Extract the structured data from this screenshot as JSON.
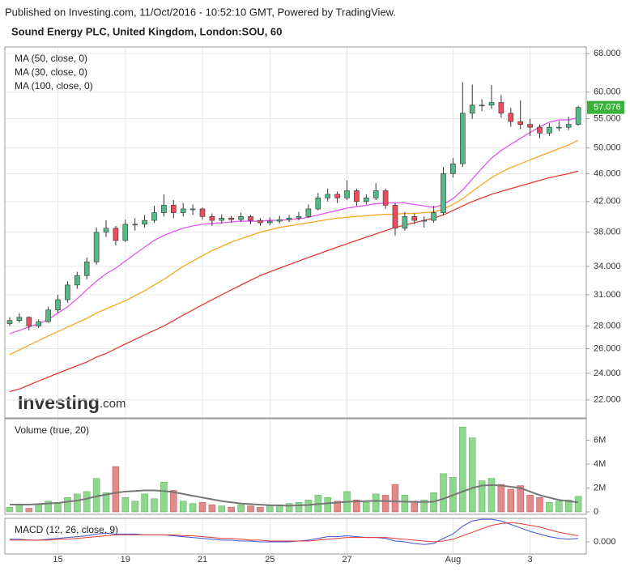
{
  "header": {
    "published": "Published on Investing.com, 11/Oct/2016 - 10:52:10 GMT, Powered by TradingView.",
    "symbol": "Sound Energy PLC, United Kingdom, London:SOU, 60"
  },
  "watermark": {
    "brand": "Investing",
    "suffix": ".com"
  },
  "chart_data": [
    {
      "type": "candlestick",
      "log": true,
      "grid": true,
      "up_color": "#53b987",
      "down_color": "#eb4d5c",
      "categories": [
        null,
        null,
        null,
        null,
        null,
        "15",
        null,
        null,
        null,
        null,
        null,
        null,
        "19",
        null,
        null,
        null,
        null,
        null,
        null,
        null,
        "21",
        null,
        null,
        null,
        null,
        null,
        null,
        "25",
        null,
        null,
        null,
        null,
        null,
        null,
        null,
        "27",
        null,
        null,
        null,
        null,
        null,
        null,
        null,
        null,
        null,
        null,
        "Aug",
        null,
        null,
        null,
        null,
        null,
        null,
        null,
        "3",
        null,
        null,
        null,
        null,
        null
      ],
      "open": [
        28.2,
        28.5,
        28.8,
        28.0,
        28.4,
        29.5,
        30.5,
        32.0,
        33.0,
        34.5,
        38.0,
        38.5,
        37.0,
        39.0,
        39.0,
        39.5,
        40.5,
        41.5,
        40.5,
        41.0,
        41.0,
        40.0,
        39.5,
        39.8,
        39.6,
        40.0,
        39.5,
        39.2,
        39.4,
        39.6,
        39.8,
        40.0,
        41.0,
        42.5,
        43.0,
        42.5,
        43.5,
        42.0,
        42.5,
        43.5,
        41.5,
        38.5,
        40.0,
        39.5,
        39.5,
        40.5,
        46.0,
        47.5,
        56.0,
        57.5,
        57.5,
        58.0,
        56.0,
        54.5,
        54.0,
        53.5,
        52.5,
        53.5,
        53.5,
        54.0
      ],
      "high": [
        28.8,
        29.2,
        28.9,
        28.6,
        29.8,
        31.0,
        32.4,
        33.4,
        35.0,
        38.6,
        39.5,
        38.8,
        39.6,
        39.8,
        40.2,
        41.4,
        43.0,
        42.2,
        41.8,
        41.6,
        41.2,
        40.4,
        40.3,
        40.1,
        40.5,
        40.2,
        39.8,
        39.9,
        40.1,
        40.2,
        40.6,
        41.6,
        43.2,
        43.8,
        43.4,
        45.0,
        43.8,
        43.0,
        44.6,
        43.8,
        41.8,
        40.6,
        40.4,
        40.0,
        41.4,
        47.0,
        48.4,
        62.0,
        61.5,
        58.6,
        61.4,
        59.4,
        57.0,
        58.4,
        55.0,
        54.0,
        54.2,
        54.6,
        55.4,
        57.4
      ],
      "low": [
        28.0,
        28.3,
        27.6,
        27.8,
        28.3,
        29.2,
        30.2,
        31.6,
        32.6,
        34.2,
        37.4,
        36.4,
        36.8,
        38.2,
        38.6,
        39.2,
        40.0,
        39.8,
        40.0,
        40.2,
        39.6,
        38.8,
        39.1,
        39.2,
        39.3,
        39.0,
        38.8,
        38.9,
        39.1,
        39.3,
        39.5,
        39.8,
        40.8,
        42.0,
        41.8,
        42.2,
        41.4,
        41.6,
        42.2,
        41.0,
        37.6,
        38.2,
        39.0,
        38.6,
        39.2,
        40.2,
        45.4,
        47.0,
        55.0,
        56.4,
        56.8,
        55.2,
        53.6,
        53.2,
        52.0,
        51.6,
        52.0,
        52.8,
        53.0,
        53.8
      ],
      "close": [
        28.5,
        28.8,
        28.0,
        28.4,
        29.5,
        30.5,
        32.0,
        33.0,
        34.5,
        38.0,
        38.5,
        37.0,
        39.0,
        39.0,
        39.5,
        40.5,
        41.5,
        40.5,
        41.0,
        41.0,
        40.0,
        39.5,
        39.8,
        39.6,
        40.0,
        39.5,
        39.2,
        39.4,
        39.6,
        39.8,
        40.0,
        41.0,
        42.5,
        43.0,
        42.5,
        43.5,
        42.0,
        42.5,
        43.5,
        41.5,
        38.5,
        40.0,
        39.5,
        39.5,
        40.5,
        46.0,
        47.5,
        56.0,
        57.5,
        57.5,
        58.0,
        56.0,
        54.5,
        54.0,
        53.5,
        52.5,
        53.5,
        53.5,
        54.0,
        57.076
      ],
      "last_color": "#3bb33b",
      "series": [
        {
          "name": "MA (50, close, 0)",
          "color": "#f5a623",
          "values": [
            25.5,
            25.9,
            26.3,
            26.7,
            27.1,
            27.5,
            27.9,
            28.3,
            28.7,
            29.2,
            29.6,
            30.0,
            30.4,
            30.9,
            31.4,
            32.0,
            32.6,
            33.3,
            34.0,
            34.6,
            35.2,
            35.8,
            36.3,
            36.8,
            37.2,
            37.6,
            38.0,
            38.3,
            38.6,
            38.8,
            39.0,
            39.2,
            39.4,
            39.6,
            39.8,
            39.9,
            40.0,
            40.1,
            40.2,
            40.3,
            40.3,
            40.4,
            40.4,
            40.5,
            40.6,
            41.0,
            41.6,
            42.4,
            43.4,
            44.4,
            45.4,
            46.2,
            46.9,
            47.5,
            48.1,
            48.7,
            49.3,
            49.9,
            50.5,
            51.3
          ]
        },
        {
          "name": "MA (30, close, 0)",
          "color": "#e255f0",
          "values": [
            27.3,
            27.6,
            27.9,
            28.2,
            28.6,
            29.2,
            29.8,
            30.6,
            31.5,
            32.4,
            33.2,
            33.8,
            34.6,
            35.4,
            36.2,
            37.0,
            37.6,
            38.1,
            38.5,
            38.8,
            39.0,
            39.1,
            39.2,
            39.3,
            39.4,
            39.4,
            39.4,
            39.5,
            39.5,
            39.6,
            39.7,
            39.9,
            40.2,
            40.5,
            40.8,
            41.1,
            41.3,
            41.5,
            41.7,
            41.8,
            41.8,
            41.8,
            41.6,
            41.4,
            41.2,
            41.6,
            42.4,
            43.6,
            45.2,
            46.8,
            48.4,
            49.6,
            50.6,
            51.6,
            52.6,
            53.6,
            54.4,
            54.8,
            54.8,
            55.2
          ]
        },
        {
          "name": "MA (100, close, 0)",
          "color": "#e53935",
          "values": [
            22.6,
            22.8,
            23.1,
            23.4,
            23.7,
            24.0,
            24.3,
            24.6,
            24.9,
            25.3,
            25.6,
            26.0,
            26.4,
            26.8,
            27.2,
            27.6,
            28.0,
            28.5,
            29.0,
            29.5,
            30.0,
            30.5,
            31.0,
            31.5,
            32.0,
            32.5,
            33.0,
            33.4,
            33.8,
            34.2,
            34.6,
            35.0,
            35.4,
            35.8,
            36.2,
            36.6,
            37.0,
            37.4,
            37.8,
            38.2,
            38.6,
            38.9,
            39.2,
            39.5,
            39.8,
            40.2,
            40.8,
            41.4,
            42.0,
            42.5,
            43.0,
            43.4,
            43.8,
            44.2,
            44.6,
            45.0,
            45.4,
            45.7,
            46.0,
            46.4
          ]
        }
      ],
      "ylim": [
        20.75,
        69.5
      ],
      "yticks": [
        {
          "value": 22,
          "label": "22.000"
        },
        {
          "value": 24,
          "label": "24.000"
        },
        {
          "value": 26,
          "label": "26.000"
        },
        {
          "value": 28,
          "label": "28.000"
        },
        {
          "value": 31,
          "label": "31.000"
        },
        {
          "value": 34,
          "label": "34.000"
        },
        {
          "value": 38,
          "label": "38.000"
        },
        {
          "value": 42,
          "label": "42.000"
        },
        {
          "value": 46,
          "label": "46.000"
        },
        {
          "value": 50,
          "label": "50.000"
        },
        {
          "value": 55,
          "label": "55.000"
        },
        {
          "value": 60,
          "label": "60.000"
        },
        {
          "value": 68,
          "label": "68.000"
        }
      ]
    },
    {
      "type": "bar",
      "title": "Volume (true, 20)",
      "up_color": "#8ed88e",
      "down_color": "#e08a8a",
      "values": [
        400000,
        600000,
        300000,
        700000,
        900000,
        800000,
        1200000,
        1500000,
        1700000,
        2800000,
        1600000,
        3800000,
        1200000,
        900000,
        1500000,
        1100000,
        2500000,
        1800000,
        900000,
        700000,
        800000,
        600000,
        500000,
        400000,
        600000,
        500000,
        400000,
        500000,
        600000,
        700000,
        800000,
        1000000,
        1400000,
        1200000,
        900000,
        1700000,
        1000000,
        800000,
        1500000,
        1400000,
        2300000,
        1400000,
        900000,
        1000000,
        1600000,
        3200000,
        2900000,
        7100000,
        6200000,
        2600000,
        2800000,
        2300000,
        1900000,
        2200000,
        1400000,
        1200000,
        800000,
        900000,
        1000000,
        1300000
      ],
      "ma": {
        "color": "#777777",
        "values": [
          600000,
          620000,
          600000,
          650000,
          700000,
          750000,
          850000,
          950000,
          1100000,
          1300000,
          1450000,
          1600000,
          1700000,
          1750000,
          1800000,
          1800000,
          1750000,
          1650000,
          1500000,
          1350000,
          1200000,
          1050000,
          900000,
          800000,
          700000,
          650000,
          600000,
          560000,
          540000,
          520000,
          540000,
          580000,
          650000,
          720000,
          780000,
          840000,
          880000,
          900000,
          920000,
          900000,
          880000,
          860000,
          840000,
          820000,
          860000,
          1100000,
          1400000,
          1700000,
          2000000,
          2200000,
          2250000,
          2200000,
          2100000,
          2000000,
          1700000,
          1400000,
          1200000,
          1000000,
          900000,
          800000
        ]
      },
      "ylim": [
        0,
        7800000
      ],
      "yticks": [
        0,
        {
          "value": 2000000,
          "label": "2M"
        },
        {
          "value": 4000000,
          "label": "4M"
        },
        {
          "value": 6000000,
          "label": "6M"
        }
      ]
    },
    {
      "type": "line",
      "title": "MACD (12, 26, close, 9)",
      "series": [
        {
          "color": "#3f51d8",
          "values": [
            0.3,
            0.3,
            0.2,
            0.2,
            0.3,
            0.4,
            0.5,
            0.6,
            0.7,
            0.9,
            1.0,
            0.9,
            0.9,
            0.9,
            0.8,
            0.8,
            0.8,
            0.7,
            0.6,
            0.5,
            0.4,
            0.3,
            0.2,
            0.2,
            0.1,
            0.1,
            0.0,
            0.0,
            0.0,
            0.0,
            0.1,
            0.2,
            0.4,
            0.6,
            0.6,
            0.7,
            0.6,
            0.5,
            0.5,
            0.4,
            0.1,
            0.0,
            -0.2,
            -0.3,
            -0.2,
            0.4,
            0.9,
            1.8,
            2.4,
            2.6,
            2.6,
            2.4,
            2.0,
            1.6,
            1.2,
            0.9,
            0.6,
            0.4,
            0.3,
            0.4
          ]
        },
        {
          "color": "#e53935",
          "values": [
            0.2,
            0.2,
            0.2,
            0.2,
            0.2,
            0.3,
            0.3,
            0.4,
            0.5,
            0.6,
            0.7,
            0.8,
            0.8,
            0.8,
            0.8,
            0.8,
            0.8,
            0.8,
            0.7,
            0.7,
            0.6,
            0.5,
            0.4,
            0.4,
            0.3,
            0.2,
            0.2,
            0.1,
            0.1,
            0.1,
            0.1,
            0.1,
            0.2,
            0.3,
            0.4,
            0.5,
            0.5,
            0.5,
            0.5,
            0.5,
            0.4,
            0.3,
            0.2,
            0.1,
            0.0,
            0.1,
            0.3,
            0.7,
            1.1,
            1.5,
            1.9,
            2.1,
            2.2,
            2.1,
            1.9,
            1.7,
            1.4,
            1.1,
            0.9,
            0.7
          ]
        }
      ],
      "ylim": [
        -1.3,
        2.7
      ],
      "yticks": [
        {
          "value": 0,
          "label": "0.000"
        }
      ]
    }
  ]
}
